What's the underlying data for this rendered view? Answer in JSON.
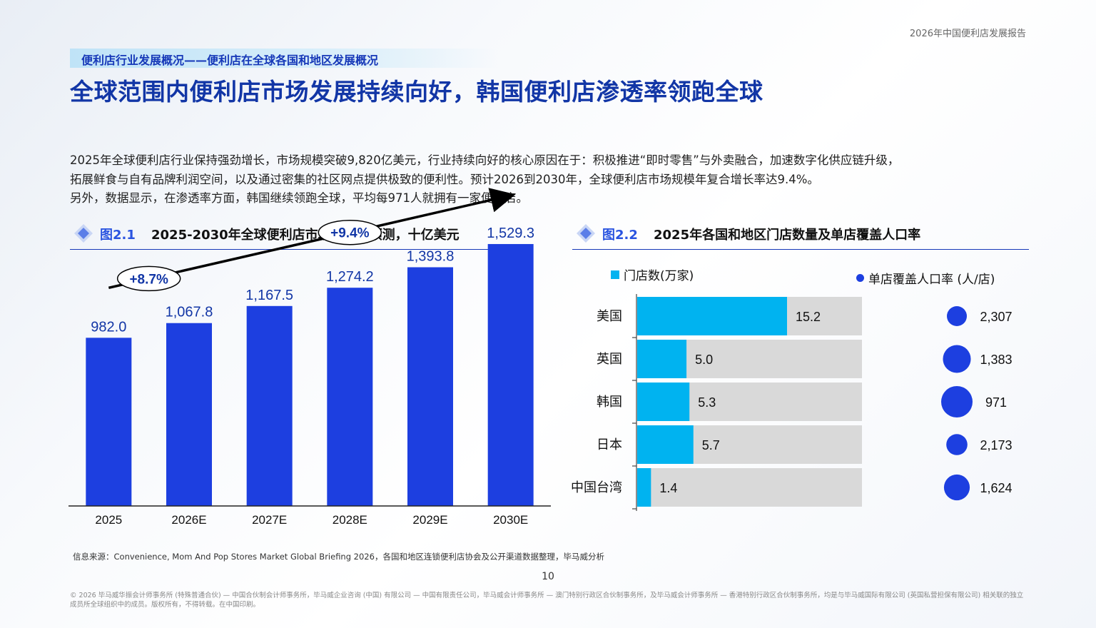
{
  "report_title": "2026年中国便利店发展报告",
  "section_label": "便利店行业发展概况——便利店在全球各国和地区发展概况",
  "headline": "全球范围内便利店市场发展持续向好，韩国便利店渗透率领跑全球",
  "paragraphs": [
    "2025年全球便利店行业保持强劲增长，市场规模突破9,820亿美元，行业持续向好的核心原因在于：积极推进“即时零售”与外卖融合，加速数字化供应链升级，",
    "拓展鲜食与自有品牌利润空间，以及通过密集的社区网点提供极致的便利性。预计2026到2030年，全球便利店市场规模年复合增长率达9.4%。",
    "另外，数据显示，在渗透率方面，韩国继续领跑全球，平均每971人就拥有一家便利店。"
  ],
  "figure1": {
    "number": "图2.1",
    "title": "2025-2030年全球便利店市场规模及预测，十亿美元"
  },
  "figure2": {
    "number": "图2.2",
    "title": "2025年各国和地区门店数量及单店覆盖人口率"
  },
  "colors": {
    "primary_blue": "#1d3fe0",
    "cyan": "#00b3f0",
    "grey_bar": "#d9d9d9",
    "dot_blue": "#1d3fe0",
    "title_blue": "#1236a6"
  },
  "chart_data": [
    {
      "type": "bar",
      "categories": [
        "2025",
        "2026E",
        "2027E",
        "2028E",
        "2029E",
        "2030E"
      ],
      "values": [
        982.0,
        1067.8,
        1167.5,
        1274.2,
        1393.8,
        1529.3
      ],
      "value_labels": [
        "982.0",
        "1,067.8",
        "1,167.5",
        "1,274.2",
        "1,393.8",
        "1,529.3"
      ],
      "ylim": [
        0,
        2000
      ],
      "annotations": [
        "+8.7%",
        "+9.4%"
      ],
      "color": "#1d3fe0"
    },
    {
      "type": "bar",
      "orientation": "horizontal",
      "categories": [
        "美国",
        "英国",
        "韩国",
        "日本",
        "中国台湾"
      ],
      "series": [
        {
          "name": "门店数(万家)",
          "values": [
            15.2,
            5.0,
            5.3,
            5.7,
            1.4
          ],
          "value_labels": [
            "15.2",
            "5.0",
            "5.3",
            "5.7",
            "1.4"
          ],
          "color": "#00b3f0"
        }
      ],
      "xlim": [
        0,
        22.8
      ],
      "background_bar_color": "#d9d9d9"
    },
    {
      "type": "scatter",
      "name": "单店覆盖人口率 (人/店)",
      "categories": [
        "美国",
        "英国",
        "韩国",
        "日本",
        "中国台湾"
      ],
      "values": [
        2307,
        1383,
        971,
        2173,
        1624
      ],
      "value_labels": [
        "2,307",
        "1,383",
        "971",
        "2,173",
        "1,624"
      ],
      "color": "#1d3fe0"
    }
  ],
  "legend": {
    "stores": "门店数(万家)",
    "coverage": "单店覆盖人口率 (人/店)"
  },
  "source": "信息来源：Convenience, Mom And Pop Stores Market Global Briefing 2026，各国和地区连锁便利店协会及公开渠道数据整理，毕马威分析",
  "page_number": "10",
  "copyright": "© 2026 毕马威华振会计师事务所 (特殊普通合伙) — 中国合伙制会计师事务所，毕马威企业咨询 (中国) 有限公司 — 中国有限责任公司，毕马威会计师事务所 — 澳门特别行政区合伙制事务所，及毕马威会计师事务所 — 香港特别行政区合伙制事务所，均是与毕马威国际有限公司 (英国私营担保有限公司) 相关联的独立成员所全球组织中的成员。版权所有，不得转载。在中国印刷。"
}
